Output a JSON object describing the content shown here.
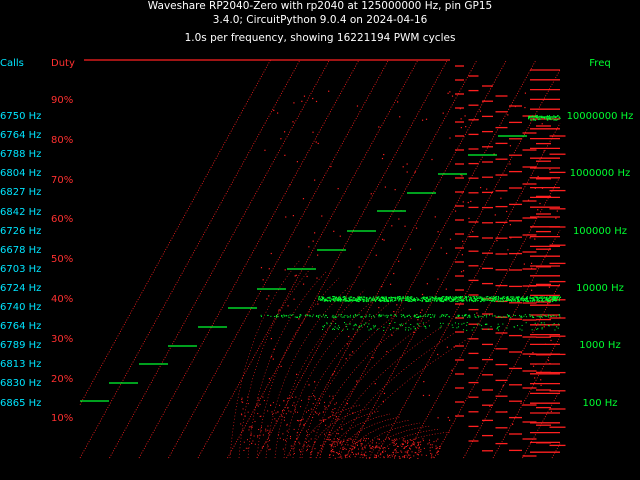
{
  "title": {
    "line1": "Waveshare RP2040-Zero with rp2040 at 125000000 Hz, pin GP15",
    "line2": "3.4.0; CircuitPython 9.0.4 on 2024-04-16",
    "line3": "1.0s per frequency, showing 16221194 PWM cycles"
  },
  "headers": {
    "calls": "Calls",
    "duty": "Duty",
    "freq": "Freq"
  },
  "calls_labels": [
    "6750 Hz",
    "6764 Hz",
    "6788 Hz",
    "6804 Hz",
    "6827 Hz",
    "6842 Hz",
    "6726 Hz",
    "6678 Hz",
    "6703 Hz",
    "6724 Hz",
    "6740 Hz",
    "6764 Hz",
    "6789 Hz",
    "6813 Hz",
    "6830 Hz",
    "6865 Hz"
  ],
  "duty_labels": [
    "90%",
    "80%",
    "70%",
    "60%",
    "50%",
    "40%",
    "30%",
    "20%",
    "10%"
  ],
  "freq_labels": [
    "10000000 Hz",
    "1000000 Hz",
    "100000 Hz",
    "10000 Hz",
    "1000 Hz",
    "100 Hz"
  ],
  "colors": {
    "duty": "#ff2020",
    "freq": "#00ff30",
    "calls": "#00e5ff",
    "background": "#000000"
  },
  "chart_data": {
    "type": "scatter",
    "title": "Waveshare RP2040-Zero with rp2040 at 125000000 Hz, pin GP15",
    "subtitle": "1.0s per frequency, showing 16221194 PWM cycles",
    "y_left_label": "Duty",
    "y_right_label": "Freq",
    "duty_ticks": [
      90,
      80,
      70,
      60,
      50,
      40,
      30,
      20,
      10
    ],
    "freq_ticks_hz": [
      10000000,
      1000000,
      100000,
      10000,
      1000,
      100
    ],
    "freq_scale": "log",
    "ylim_duty": [
      0,
      100
    ],
    "grid": false,
    "series": [
      {
        "name": "Duty",
        "color": "#ff2020"
      },
      {
        "name": "Freq",
        "color": "#00ff30"
      }
    ]
  }
}
